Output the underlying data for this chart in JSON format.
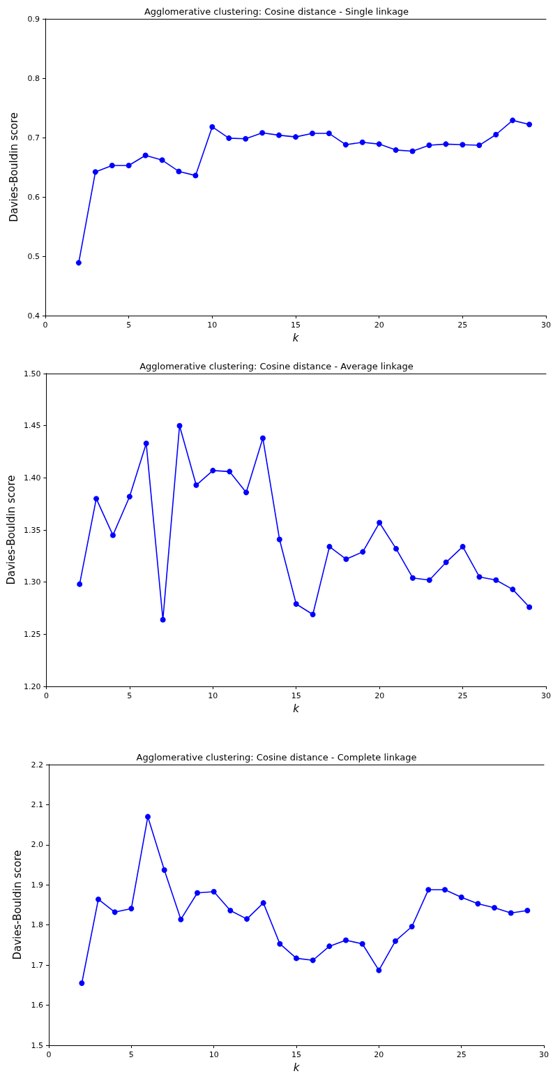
{
  "chart_data": [
    {
      "type": "line",
      "title": "Agglomerative clustering: Cosine distance - Single linkage",
      "xlabel": "k",
      "ylabel": "Davies-Bouldin score",
      "x": [
        2,
        3,
        4,
        5,
        6,
        7,
        8,
        9,
        10,
        11,
        12,
        13,
        14,
        15,
        16,
        17,
        18,
        19,
        20,
        21,
        22,
        23,
        24,
        25,
        26,
        27,
        28,
        29
      ],
      "series": [
        {
          "color": "#0000ff",
          "values": [
            0.489,
            0.642,
            0.653,
            0.653,
            0.67,
            0.662,
            0.643,
            0.636,
            0.718,
            0.699,
            0.698,
            0.708,
            0.704,
            0.701,
            0.707,
            0.707,
            0.688,
            0.692,
            0.689,
            0.679,
            0.677,
            0.687,
            0.689,
            0.688,
            0.687,
            0.705,
            0.729,
            0.722
          ]
        }
      ],
      "xlim": [
        0,
        30
      ],
      "xticks": [
        0,
        5,
        10,
        15,
        20,
        25,
        30
      ],
      "ylim": [
        0.4,
        0.9
      ],
      "yticks": [
        0.4,
        0.5,
        0.6,
        0.7,
        0.8,
        0.9
      ],
      "grid": false,
      "marker": "circle",
      "line_style": "solid"
    },
    {
      "type": "line",
      "title": "Agglomerative clustering: Cosine distance - Average linkage",
      "xlabel": "k",
      "ylabel": "Davies-Bouldin score",
      "x": [
        2,
        3,
        4,
        5,
        6,
        7,
        8,
        9,
        10,
        11,
        12,
        13,
        14,
        15,
        16,
        17,
        18,
        19,
        20,
        21,
        22,
        23,
        24,
        25,
        26,
        27,
        28,
        29
      ],
      "series": [
        {
          "color": "#0000ff",
          "values": [
            1.298,
            1.38,
            1.345,
            1.382,
            1.433,
            1.264,
            1.45,
            1.393,
            1.407,
            1.406,
            1.386,
            1.438,
            1.341,
            1.279,
            1.269,
            1.334,
            1.322,
            1.329,
            1.357,
            1.332,
            1.304,
            1.302,
            1.319,
            1.334,
            1.305,
            1.302,
            1.293,
            1.276
          ]
        }
      ],
      "xlim": [
        0,
        30
      ],
      "xticks": [
        0,
        5,
        10,
        15,
        20,
        25,
        30
      ],
      "ylim": [
        1.2,
        1.5
      ],
      "yticks": [
        {
          "value": 1.2,
          "label": "1.20"
        },
        1.25,
        {
          "value": 1.3,
          "label": "1.30"
        },
        1.35,
        {
          "value": 1.4,
          "label": "1.40"
        },
        1.45,
        {
          "value": 1.5,
          "label": "1.50"
        }
      ],
      "grid": false,
      "marker": "circle",
      "line_style": "solid"
    },
    {
      "type": "line",
      "title": "Agglomerative clustering: Cosine distance - Complete linkage",
      "xlabel": "k",
      "ylabel": "Davies-Bouldin score",
      "x": [
        2,
        3,
        4,
        5,
        6,
        7,
        8,
        9,
        10,
        11,
        12,
        13,
        14,
        15,
        16,
        17,
        18,
        19,
        20,
        21,
        22,
        23,
        24,
        25,
        26,
        27,
        28,
        29
      ],
      "series": [
        {
          "color": "#0000ff",
          "values": [
            1.655,
            1.864,
            1.832,
            1.841,
            2.07,
            1.937,
            1.814,
            1.88,
            1.883,
            1.836,
            1.815,
            1.855,
            1.753,
            1.717,
            1.712,
            1.747,
            1.762,
            1.753,
            1.687,
            1.76,
            1.796,
            1.888,
            1.888,
            1.869,
            1.853,
            1.843,
            1.83,
            1.836
          ]
        }
      ],
      "xlim": [
        0,
        30
      ],
      "xticks": [
        0,
        5,
        10,
        15,
        20,
        25,
        30
      ],
      "ylim": [
        1.5,
        2.2
      ],
      "yticks": [
        1.5,
        1.6,
        1.7,
        1.8,
        1.9,
        {
          "value": 2,
          "label": "2.0"
        },
        2.1,
        2.2
      ],
      "grid": false,
      "marker": "circle",
      "line_style": "solid"
    }
  ]
}
